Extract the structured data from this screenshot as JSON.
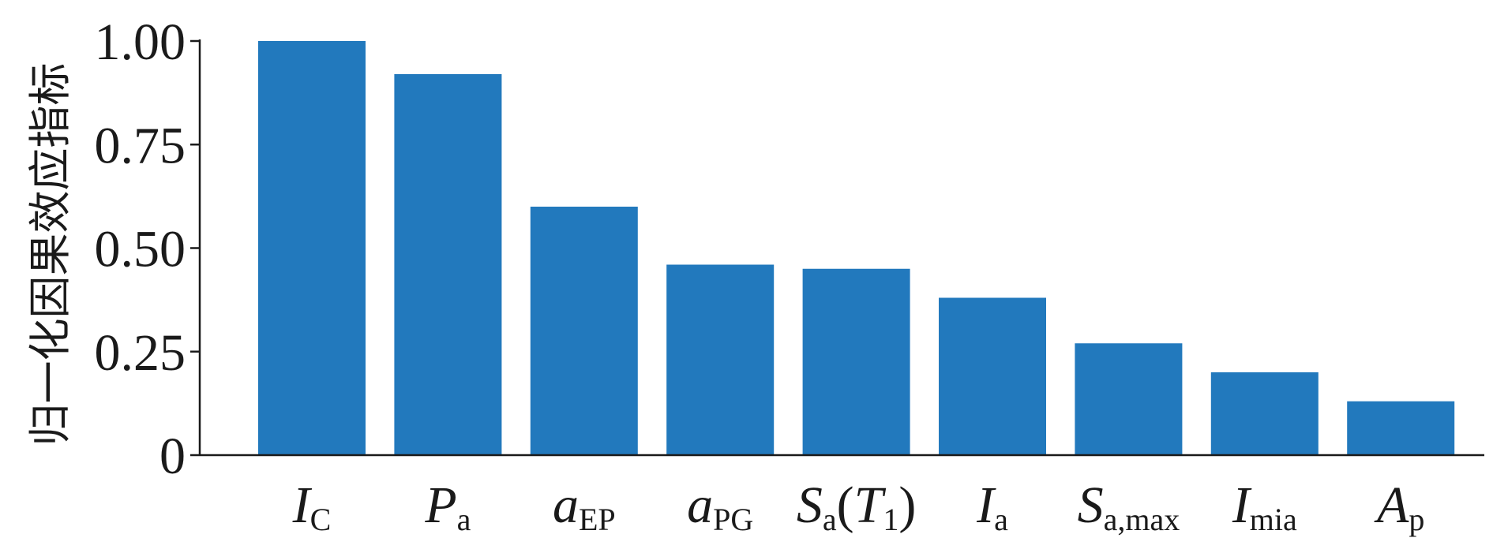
{
  "chart_data": {
    "type": "bar",
    "title": "",
    "xlabel": "",
    "ylabel": "归一化因果效应指标",
    "ylim": [
      0,
      1.0
    ],
    "yticks": [
      0,
      0.25,
      0.5,
      0.75,
      1.0
    ],
    "ytick_labels": [
      "0",
      "0.25",
      "0.50",
      "0.75",
      "1.00"
    ],
    "grid": false,
    "legend": "none",
    "bar_color": "#2279bd",
    "categories": [
      {
        "main": "I",
        "sub": "C"
      },
      {
        "main": "P",
        "sub": "a"
      },
      {
        "main": "a",
        "sub": "EP"
      },
      {
        "main": "a",
        "sub": "PG"
      },
      {
        "main": "S",
        "sub": "a",
        "paren_main": "T",
        "paren_sub": "1"
      },
      {
        "main": "I",
        "sub": "a"
      },
      {
        "main": "S",
        "sub": "a,max"
      },
      {
        "main": "I",
        "sub": "mia"
      },
      {
        "main": "A",
        "sub": "p"
      }
    ],
    "values": [
      1.0,
      0.92,
      0.6,
      0.46,
      0.45,
      0.38,
      0.27,
      0.2,
      0.13
    ]
  }
}
